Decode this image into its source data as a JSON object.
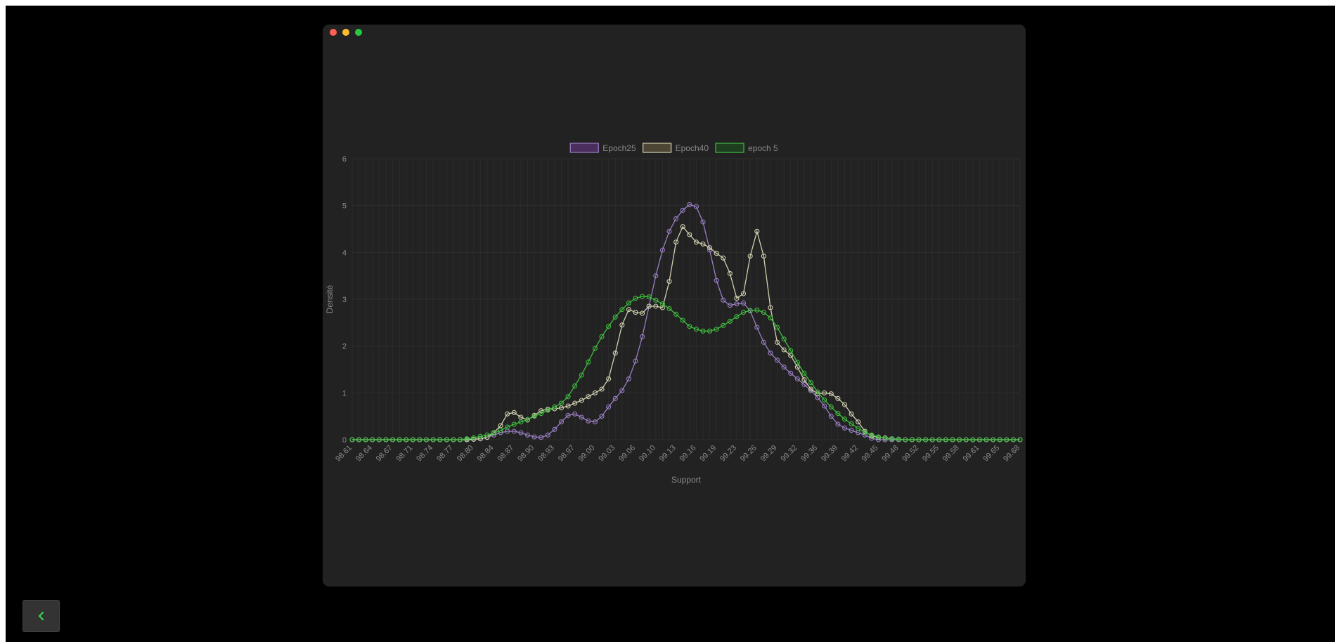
{
  "window": {
    "controls": [
      {
        "name": "close",
        "color": "#ff5f57"
      },
      {
        "name": "minimize",
        "color": "#febc2e"
      },
      {
        "name": "maximize",
        "color": "#28c840"
      }
    ]
  },
  "navigation": {
    "back_icon": "chevron-left-icon",
    "accent": "#39d353"
  },
  "chart_data": {
    "type": "line",
    "title": "",
    "xlabel": "Support",
    "ylabel": "Densité",
    "ylim": [
      0,
      6
    ],
    "yticks": [
      0,
      1,
      2,
      3,
      4,
      5,
      6
    ],
    "grid": true,
    "legend": "top-center",
    "x_tick_labels": [
      "98.61",
      "98.64",
      "98.67",
      "98.71",
      "98.74",
      "98.77",
      "98.80",
      "98.84",
      "98.87",
      "98.90",
      "98.93",
      "98.97",
      "99.00",
      "99.03",
      "99.06",
      "99.10",
      "99.13",
      "99.16",
      "99.19",
      "99.23",
      "99.26",
      "99.29",
      "99.32",
      "99.36",
      "99.39",
      "99.42",
      "99.45",
      "99.48",
      "99.52",
      "99.55",
      "99.58",
      "99.61",
      "99.65",
      "99.68"
    ],
    "points_per_tick": 3,
    "n_points": 100,
    "series": [
      {
        "name": "Epoch25",
        "color": "#9a7fc4",
        "legend_fill": "#4b2e5e",
        "values": [
          0,
          0,
          0,
          0,
          0,
          0,
          0,
          0,
          0,
          0,
          0,
          0,
          0,
          0,
          0,
          0,
          0,
          0,
          0.01,
          0.02,
          0.05,
          0.1,
          0.15,
          0.18,
          0.18,
          0.15,
          0.1,
          0.06,
          0.05,
          0.1,
          0.22,
          0.38,
          0.52,
          0.55,
          0.48,
          0.4,
          0.38,
          0.5,
          0.7,
          0.88,
          1.05,
          1.3,
          1.68,
          2.2,
          2.85,
          3.5,
          4.05,
          4.45,
          4.72,
          4.9,
          5.02,
          4.98,
          4.65,
          4.05,
          3.4,
          2.98,
          2.87,
          2.9,
          2.92,
          2.75,
          2.4,
          2.08,
          1.85,
          1.7,
          1.55,
          1.42,
          1.3,
          1.18,
          1.05,
          0.9,
          0.72,
          0.5,
          0.33,
          0.25,
          0.2,
          0.15,
          0.1,
          0.03,
          0,
          0,
          0,
          0,
          0,
          0,
          0,
          0,
          0,
          0,
          0,
          0,
          0,
          0,
          0,
          0,
          0,
          0,
          0,
          0,
          0,
          0
        ]
      },
      {
        "name": "Epoch40",
        "color": "#d2d0b0",
        "legend_fill": "#4d4634",
        "values": [
          0,
          0,
          0,
          0,
          0,
          0,
          0,
          0,
          0,
          0,
          0,
          0,
          0,
          0,
          0,
          0,
          0,
          0,
          0.01,
          0.02,
          0.05,
          0.15,
          0.3,
          0.55,
          0.58,
          0.48,
          0.42,
          0.52,
          0.62,
          0.65,
          0.66,
          0.68,
          0.72,
          0.78,
          0.84,
          0.92,
          1,
          1.08,
          1.3,
          1.85,
          2.45,
          2.78,
          2.72,
          2.7,
          2.85,
          2.85,
          2.82,
          3.38,
          4.22,
          4.55,
          4.38,
          4.22,
          4.18,
          4.1,
          3.98,
          3.88,
          3.55,
          3.02,
          3.12,
          3.92,
          4.45,
          3.92,
          2.82,
          2.08,
          1.92,
          1.8,
          1.55,
          1.28,
          1.08,
          0.98,
          1,
          0.98,
          0.88,
          0.75,
          0.55,
          0.38,
          0.18,
          0.08,
          0.05,
          0.04,
          0.02,
          0.01,
          0,
          0,
          0,
          0,
          0,
          0,
          0,
          0,
          0,
          0,
          0,
          0,
          0,
          0,
          0,
          0,
          0,
          0
        ]
      },
      {
        "name": "epoch 5",
        "color": "#3fbe3f",
        "legend_fill": "#1f3d1f",
        "values": [
          0,
          0,
          0,
          0,
          0,
          0,
          0,
          0,
          0,
          0,
          0,
          0,
          0,
          0,
          0,
          0,
          0,
          0.02,
          0.04,
          0.07,
          0.1,
          0.14,
          0.2,
          0.27,
          0.33,
          0.38,
          0.43,
          0.5,
          0.56,
          0.63,
          0.7,
          0.78,
          0.92,
          1.15,
          1.38,
          1.66,
          1.95,
          2.2,
          2.42,
          2.62,
          2.78,
          2.92,
          3.02,
          3.06,
          3.05,
          2.98,
          2.9,
          2.8,
          2.68,
          2.55,
          2.42,
          2.36,
          2.32,
          2.32,
          2.36,
          2.44,
          2.53,
          2.63,
          2.72,
          2.76,
          2.77,
          2.72,
          2.6,
          2.4,
          2.15,
          1.9,
          1.65,
          1.42,
          1.22,
          1.02,
          0.85,
          0.7,
          0.56,
          0.44,
          0.34,
          0.24,
          0.16,
          0.1,
          0.06,
          0.03,
          0.02,
          0.01,
          0,
          0,
          0,
          0,
          0,
          0,
          0,
          0,
          0,
          0,
          0,
          0,
          0,
          0,
          0,
          0,
          0,
          0
        ]
      }
    ]
  }
}
